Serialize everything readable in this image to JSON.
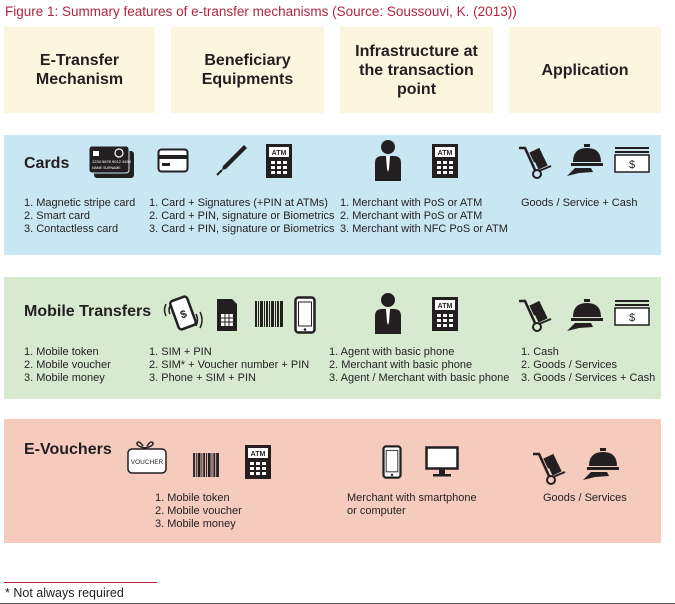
{
  "figure_title": "Figure 1: Summary features of e-transfer mechanisms (Source: Soussouvi, K. (2013))",
  "headers": {
    "mechanism": "E-Transfer\nMechanism",
    "beneficiary": "Beneficiary\nEquipments",
    "infrastructure": "Infrastructure at\nthe transaction\npoint",
    "application": "Application"
  },
  "cards": {
    "title": "Cards",
    "mechanism_list": [
      "1. Magnetic stripe card",
      "2. Smart card",
      "3. Contactless card"
    ],
    "beneficiary_list": [
      "1. Card + Signatures (+PIN at ATMs)",
      "2. Card + PIN, signature or Biometrics",
      "3. Card + PIN, signature or Biometrics"
    ],
    "infrastructure_list": [
      "1. Merchant with PoS or ATM",
      "2. Merchant with PoS or ATM",
      "3. Merchant with NFC PoS or ATM"
    ],
    "application_list": [
      "Goods / Service + Cash"
    ],
    "icons": [
      "bank-card-icon",
      "card-reader-icon",
      "pen-icon",
      "atm-icon",
      "merchant-icon",
      "atm-icon",
      "hand-truck-icon",
      "service-bell-icon",
      "cash-icon"
    ]
  },
  "mobile": {
    "title": "Mobile Transfers",
    "mechanism_list": [
      "1. Mobile token",
      "2. Mobile voucher",
      "3. Mobile money"
    ],
    "beneficiary_list": [
      "1. SIM + PIN",
      "2. SIM* + Voucher number + PIN",
      "3. Phone + SIM + PIN"
    ],
    "infrastructure_list": [
      "1. Agent with basic phone",
      "2. Merchant with basic phone",
      "3. Agent / Merchant with basic phone"
    ],
    "application_list": [
      "1. Cash",
      "2. Goods / Services",
      "3. Goods / Services + Cash"
    ],
    "icons": [
      "mobile-payment-icon",
      "sim-card-icon",
      "barcode-icon",
      "smartphone-icon",
      "merchant-icon",
      "atm-icon",
      "hand-truck-icon",
      "service-bell-icon",
      "cash-icon"
    ]
  },
  "evouchers": {
    "title": "E-Vouchers",
    "voucher_label": "VOUCHER",
    "beneficiary_list": [
      "1. Mobile token",
      "2. Mobile voucher",
      "3. Mobile money"
    ],
    "infrastructure_list": [
      "Merchant with smartphone",
      "or computer"
    ],
    "application_list": [
      "Goods / Services"
    ],
    "icons": [
      "voucher-icon",
      "barcode-icon",
      "atm-icon",
      "smartphone-icon",
      "monitor-icon",
      "hand-truck-icon",
      "service-bell-icon"
    ]
  },
  "atm_label": "ATM",
  "cash_symbol": "$",
  "card_text_lines": [
    "1234 5678 9012 3456",
    "NAME SURNAME"
  ],
  "footnote": "* Not always required",
  "colors": {
    "title": "#b0263d",
    "header_bg": "#fcf6de",
    "cards_bg": "#c9e6f3",
    "mobile_bg": "#d7ead0",
    "evouchers_bg": "#f4cbbc",
    "icon": "#231f20"
  }
}
